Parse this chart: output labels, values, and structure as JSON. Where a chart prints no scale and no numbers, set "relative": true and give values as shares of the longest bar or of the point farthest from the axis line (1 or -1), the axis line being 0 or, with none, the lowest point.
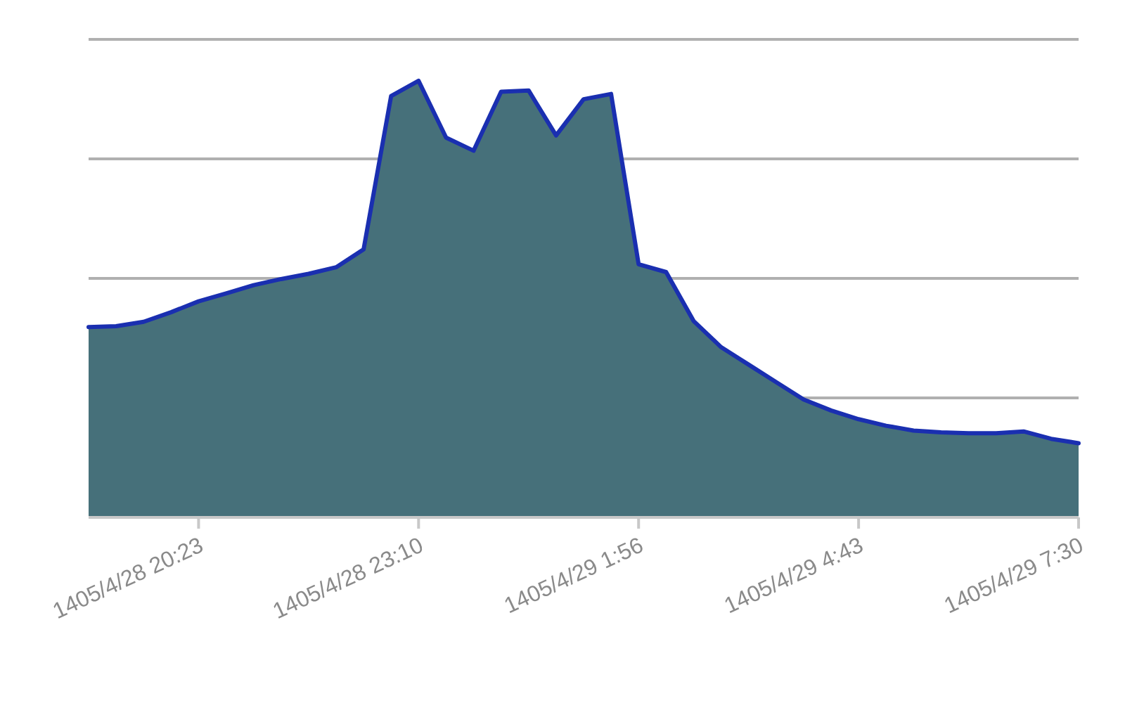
{
  "chart_data": {
    "type": "area",
    "relative": true,
    "color": "#1a2fb0",
    "grid": true,
    "categories": [
      null,
      null,
      null,
      null,
      "1405/4/28 20:23",
      null,
      null,
      null,
      null,
      null,
      null,
      null,
      "1405/4/28 23:10",
      null,
      null,
      null,
      null,
      null,
      null,
      null,
      "1405/4/29 1:56",
      null,
      null,
      null,
      null,
      null,
      null,
      null,
      "1405/4/29 4:43",
      null,
      null,
      null,
      null,
      null,
      null,
      null,
      "1405/4/29 7:30"
    ],
    "values": [
      0.436,
      0.438,
      0.448,
      0.47,
      0.495,
      0.513,
      0.532,
      0.546,
      0.558,
      0.573,
      0.614,
      0.965,
      1.0,
      0.87,
      0.84,
      0.975,
      0.978,
      0.875,
      0.958,
      0.97,
      0.58,
      0.562,
      0.45,
      0.39,
      0.35,
      0.31,
      0.27,
      0.245,
      0.225,
      0.21,
      0.199,
      0.195,
      0.193,
      0.193,
      0.197,
      0.18,
      0.17
    ]
  }
}
